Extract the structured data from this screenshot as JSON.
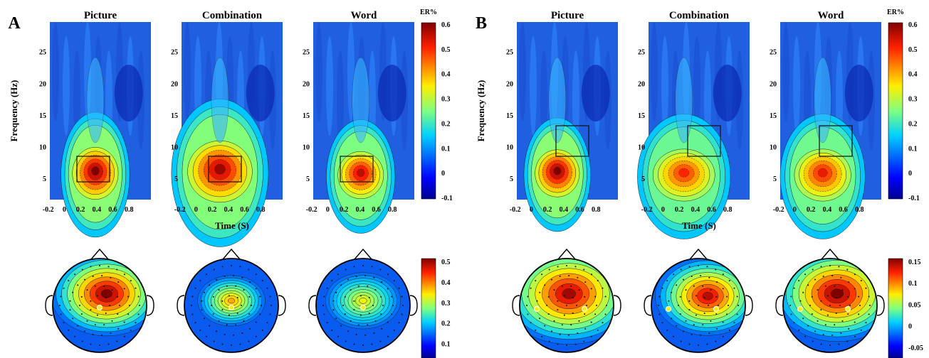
{
  "panels": [
    {
      "letter": "A",
      "titles": [
        "Picture",
        "Combination",
        "Word"
      ],
      "ylabel": "Frequency (Hz)",
      "xlabel": "Time (S)",
      "xticks": [
        "-0.2",
        "0",
        "0.2",
        "0.4",
        "0.6",
        "0.8"
      ],
      "yticks": [
        "5",
        "10",
        "15",
        "20",
        "25"
      ],
      "tf_colorbar": {
        "title": "ER%",
        "ticks": [
          "0.6",
          "0.5",
          "0.4",
          "0.3",
          "0.2",
          "0.1",
          "0",
          "-0.1"
        ]
      },
      "topo_colorbar": {
        "ticks": [
          "0.5",
          "0.4",
          "0.3",
          "0.2",
          "0.1"
        ]
      }
    },
    {
      "letter": "B",
      "titles": [
        "Picture",
        "Combination",
        "Word"
      ],
      "ylabel": "Frequency (Hz)",
      "xlabel": "Time (S)",
      "xticks": [
        "-0.2",
        "0",
        "0.2",
        "0.4",
        "0.6",
        "0.8"
      ],
      "yticks": [
        "5",
        "10",
        "15",
        "20",
        "25"
      ],
      "tf_colorbar": {
        "title": "ER%",
        "ticks": [
          "0.6",
          "0.5",
          "0.4",
          "0.3",
          "0.2",
          "0.1",
          "0",
          "-0.1"
        ]
      },
      "topo_colorbar": {
        "ticks": [
          "0.15",
          "0.1",
          "0.05",
          "0",
          "-0.05"
        ]
      }
    }
  ],
  "colors": {
    "jet_low": "#00008f",
    "jet_mid": "#2fa7ff",
    "jet_high": "#800000"
  }
}
